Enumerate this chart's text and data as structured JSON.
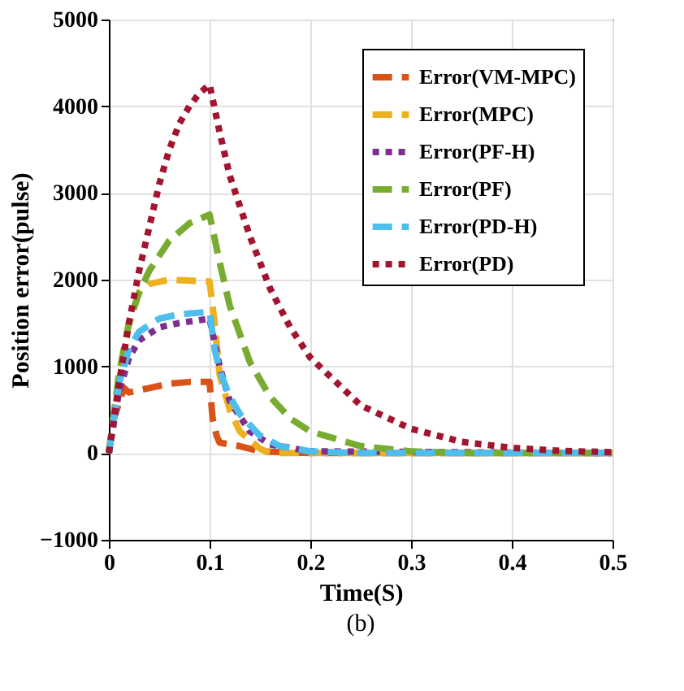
{
  "chart_data": {
    "type": "line",
    "xlabel": "Time(S)",
    "ylabel": "Position error(pulse)",
    "xlim": [
      0,
      0.5
    ],
    "xticks": [
      0,
      0.1,
      0.2,
      0.3,
      0.4,
      0.5
    ],
    "ylim": [
      -1000,
      5000
    ],
    "yticks": [
      -1000,
      0,
      1000,
      2000,
      3000,
      4000,
      5000
    ],
    "grid": true,
    "legend": "top right",
    "annotations": [
      "(b)"
    ],
    "series": [
      {
        "name": "Error(VM-MPC)",
        "color": "#d95319",
        "line_style": "dashed",
        "x": [
          0,
          0.005,
          0.015,
          0.02,
          0.04,
          0.06,
          0.08,
          0.1,
          0.103,
          0.107,
          0.11,
          0.12,
          0.13,
          0.15,
          0.2,
          0.5
        ],
        "values": [
          0,
          400,
          750,
          700,
          750,
          800,
          820,
          820,
          400,
          200,
          120,
          100,
          80,
          20,
          0,
          0
        ]
      },
      {
        "name": "Error(MPC)",
        "color": "#edb120",
        "line_style": "dashed",
        "x": [
          0,
          0.01,
          0.02,
          0.03,
          0.04,
          0.06,
          0.1,
          0.105,
          0.11,
          0.12,
          0.13,
          0.15,
          0.16,
          0.5
        ],
        "values": [
          0,
          900,
          1500,
          1850,
          1950,
          2000,
          1980,
          1500,
          900,
          500,
          250,
          50,
          0,
          0
        ]
      },
      {
        "name": "Error(PF-H)",
        "color": "#7e2f8e",
        "line_style": "dotted",
        "x": [
          0,
          0.01,
          0.02,
          0.03,
          0.05,
          0.07,
          0.1,
          0.11,
          0.12,
          0.14,
          0.16,
          0.2,
          0.5
        ],
        "values": [
          0,
          700,
          1100,
          1300,
          1450,
          1500,
          1550,
          1000,
          600,
          250,
          100,
          20,
          0
        ]
      },
      {
        "name": "Error(PF)",
        "color": "#77ac30",
        "line_style": "dashed",
        "x": [
          0,
          0.01,
          0.02,
          0.03,
          0.04,
          0.06,
          0.08,
          0.1,
          0.11,
          0.12,
          0.14,
          0.16,
          0.18,
          0.2,
          0.25,
          0.3,
          0.35,
          0.5
        ],
        "values": [
          0,
          900,
          1500,
          1850,
          2100,
          2450,
          2650,
          2750,
          2200,
          1700,
          1050,
          650,
          400,
          250,
          80,
          20,
          0,
          0
        ]
      },
      {
        "name": "Error(PD-H)",
        "color": "#4dbeee",
        "line_style": "dashed",
        "x": [
          0,
          0.01,
          0.02,
          0.03,
          0.05,
          0.07,
          0.1,
          0.105,
          0.11,
          0.12,
          0.13,
          0.15,
          0.17,
          0.2,
          0.25,
          0.5
        ],
        "values": [
          0,
          800,
          1200,
          1400,
          1550,
          1600,
          1630,
          1200,
          950,
          650,
          450,
          200,
          80,
          20,
          0,
          0
        ]
      },
      {
        "name": "Error(PD)",
        "color": "#a2142f",
        "line_style": "dotted",
        "x": [
          0,
          0.01,
          0.02,
          0.03,
          0.04,
          0.05,
          0.06,
          0.07,
          0.08,
          0.09,
          0.1,
          0.11,
          0.12,
          0.14,
          0.16,
          0.18,
          0.2,
          0.25,
          0.3,
          0.35,
          0.4,
          0.45,
          0.5
        ],
        "values": [
          0,
          800,
          1500,
          2100,
          2600,
          3100,
          3500,
          3800,
          4000,
          4150,
          4250,
          3700,
          3200,
          2500,
          1900,
          1450,
          1100,
          550,
          280,
          130,
          60,
          25,
          10
        ]
      }
    ]
  }
}
